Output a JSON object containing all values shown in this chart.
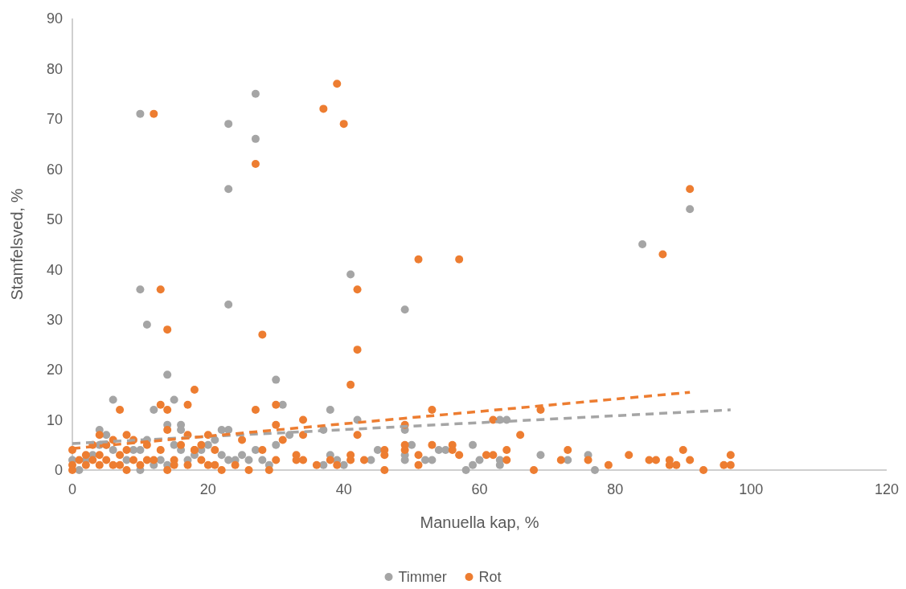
{
  "chart_data": {
    "type": "scatter",
    "xlabel": "Manuella kap, %",
    "ylabel": "Stamfelsved, %",
    "xlim": [
      0,
      120
    ],
    "xticks": [
      0,
      20,
      40,
      60,
      80,
      100,
      120
    ],
    "ylim": [
      0,
      90
    ],
    "yticks": [
      0,
      10,
      20,
      30,
      40,
      50,
      60,
      70,
      80,
      90
    ],
    "grid": false,
    "legend": "bottom",
    "marker": "circle",
    "series": [
      {
        "name": "Timmer",
        "color": "#a5a5a5",
        "x": [
          10,
          23,
          27,
          27,
          23,
          10,
          11,
          23,
          14,
          15,
          6,
          30,
          31,
          41,
          49,
          38,
          42,
          84,
          91,
          12,
          16,
          14,
          16,
          22,
          23,
          4,
          5,
          37,
          49,
          63,
          64,
          21,
          11,
          27,
          30,
          32,
          0,
          1,
          2,
          3,
          4,
          5,
          6,
          8,
          9,
          10,
          10,
          12,
          13,
          14,
          15,
          16,
          17,
          18,
          19,
          20,
          22,
          23,
          24,
          25,
          26,
          28,
          29,
          37,
          38,
          39,
          40,
          44,
          45,
          49,
          49,
          50,
          52,
          53,
          54,
          55,
          58,
          59,
          60,
          59,
          63,
          63,
          69,
          73,
          76,
          77
        ],
        "values": [
          71,
          69,
          75,
          66,
          56,
          36,
          29,
          33,
          19,
          14,
          14,
          18,
          13,
          39,
          32,
          12,
          10,
          45,
          52,
          12,
          9,
          9,
          8,
          8,
          8,
          8,
          7,
          8,
          8,
          10,
          10,
          6,
          6,
          4,
          5,
          7,
          2,
          0,
          2,
          3,
          5,
          5,
          4,
          2,
          4,
          0,
          4,
          1,
          2,
          1,
          5,
          4,
          2,
          3,
          4,
          5,
          3,
          2,
          2,
          3,
          2,
          2,
          1,
          1,
          3,
          2,
          1,
          2,
          4,
          2,
          3,
          5,
          2,
          2,
          4,
          4,
          0,
          1,
          2,
          5,
          2,
          1,
          3,
          2,
          3,
          0
        ]
      },
      {
        "name": "Rot",
        "color": "#ed7d31",
        "x": [
          39,
          37,
          40,
          12,
          27,
          91,
          51,
          57,
          87,
          42,
          13,
          14,
          28,
          42,
          41,
          18,
          30,
          13,
          17,
          7,
          14,
          27,
          53,
          69,
          34,
          62,
          30,
          49,
          14,
          4,
          8,
          17,
          20,
          34,
          42,
          66,
          6,
          9,
          25,
          31,
          19,
          18,
          28,
          0,
          0,
          0,
          1,
          2,
          2,
          3,
          3,
          4,
          4,
          5,
          5,
          6,
          7,
          7,
          8,
          8,
          9,
          10,
          11,
          11,
          12,
          13,
          14,
          15,
          15,
          16,
          17,
          18,
          19,
          20,
          21,
          21,
          22,
          24,
          26,
          29,
          30,
          33,
          33,
          34,
          36,
          38,
          39,
          41,
          41,
          43,
          46,
          46,
          46,
          49,
          49,
          51,
          51,
          53,
          56,
          56,
          57,
          61,
          62,
          64,
          64,
          68,
          72,
          73,
          76,
          79,
          82,
          85,
          86,
          88,
          88,
          89,
          90,
          91,
          93,
          96,
          97,
          97
        ],
        "values": [
          77,
          72,
          69,
          71,
          61,
          56,
          42,
          42,
          43,
          36,
          36,
          28,
          27,
          24,
          17,
          16,
          13,
          13,
          13,
          12,
          12,
          12,
          12,
          12,
          10,
          10,
          9,
          9,
          8,
          7,
          7,
          7,
          7,
          7,
          7,
          7,
          6,
          6,
          6,
          6,
          5,
          4,
          4,
          4,
          1,
          0,
          2,
          3,
          1,
          5,
          2,
          3,
          1,
          5,
          2,
          1,
          3,
          1,
          0,
          4,
          2,
          1,
          2,
          5,
          2,
          4,
          0,
          2,
          1,
          5,
          1,
          4,
          2,
          1,
          4,
          1,
          0,
          1,
          0,
          0,
          2,
          3,
          2,
          2,
          1,
          2,
          1,
          3,
          2,
          2,
          4,
          3,
          0,
          5,
          4,
          3,
          1,
          5,
          5,
          4,
          3,
          3,
          3,
          4,
          2,
          0,
          2,
          4,
          2,
          1,
          3,
          2,
          2,
          2,
          1,
          1,
          4,
          2,
          0,
          1,
          1,
          3
        ]
      },
      {
        "type": "line",
        "marker": "none",
        "line_style": "dashed",
        "color": "#a5a5a5",
        "x": [
          0,
          97
        ],
        "values": [
          5.3,
          12
        ]
      },
      {
        "type": "line",
        "marker": "none",
        "line_style": "dashed",
        "color": "#ed7d31",
        "x": [
          0,
          91
        ],
        "values": [
          4.3,
          15.5
        ]
      }
    ]
  }
}
